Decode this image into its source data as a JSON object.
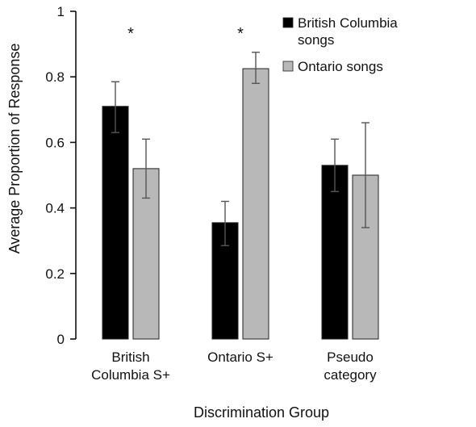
{
  "chart_data": {
    "type": "bar",
    "title": "",
    "xlabel": "Discrimination Group",
    "ylabel": "Average Proportion of Response",
    "ylim": [
      0,
      1
    ],
    "yticks": [
      0,
      0.2,
      0.4,
      0.6,
      0.8,
      1
    ],
    "ytick_labels": [
      "0",
      "0.2",
      "0.4",
      "0.6",
      "0.8",
      "1"
    ],
    "categories": [
      [
        "British",
        "Columbia S+"
      ],
      [
        "Ontario S+"
      ],
      [
        "Pseudo",
        "category"
      ]
    ],
    "series": [
      {
        "name": [
          "British Columbia",
          "songs"
        ],
        "color": "#000000",
        "values": [
          0.71,
          0.355,
          0.53
        ],
        "err_low": [
          0.63,
          0.285,
          0.45
        ],
        "err_high": [
          0.785,
          0.42,
          0.61
        ]
      },
      {
        "name": [
          "Ontario songs"
        ],
        "color": "#b8b8b8",
        "values": [
          0.52,
          0.825,
          0.5
        ],
        "err_low": [
          0.43,
          0.78,
          0.34
        ],
        "err_high": [
          0.61,
          0.875,
          0.66
        ]
      }
    ],
    "significance_markers": [
      "*",
      "*",
      ""
    ],
    "legend_position": "top-right",
    "grid": false
  }
}
